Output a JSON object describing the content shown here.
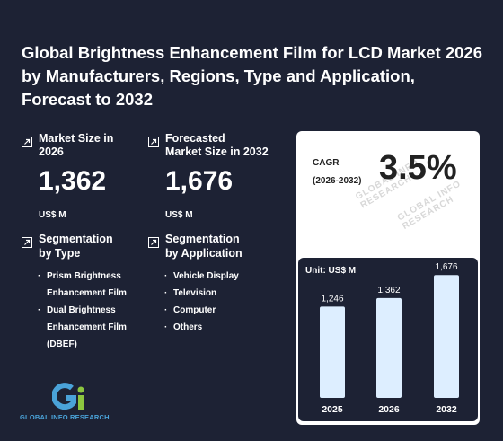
{
  "title": "Global Brightness Enhancement Film for LCD Market 2026 by Manufacturers, Regions, Type and Application, Forecast to 2032",
  "kpis": {
    "market_size": {
      "label": "Market Size in\n2026",
      "value": "1,362",
      "unit": "US$ M"
    },
    "forecast": {
      "label": "Forecasted\nMarket Size in 2032",
      "value": "1,676",
      "unit": "US$ M"
    }
  },
  "segmentation": {
    "type": {
      "heading": "Segmentation\nby Type",
      "items": [
        "Prism Brightness Enhancement Film",
        "Dual Brightness Enhancement Film (DBEF)"
      ]
    },
    "application": {
      "heading": "Segmentation\nby Application",
      "items": [
        "Vehicle Display",
        "Television",
        "Computer",
        "Others"
      ]
    }
  },
  "cagr": {
    "label": "CAGR\n(2026-2032)",
    "value": "3.5%"
  },
  "watermark": "GLOBAL INFO RESEARCH",
  "logo": {
    "text": "GLOBAL INFO RESEARCH"
  },
  "colors": {
    "background": "#1d2234",
    "bar": "#ddeeff",
    "card": "#ffffff",
    "logo_blue": "#4aa3d9",
    "logo_green": "#8cc63f"
  },
  "chart_data": {
    "type": "bar",
    "unit_label": "Unit: US$ M",
    "categories": [
      "2025",
      "2026",
      "2032"
    ],
    "values": [
      1246,
      1362,
      1676
    ],
    "value_labels": [
      "1,246",
      "1,362",
      "1,676"
    ],
    "ylim": [
      0,
      2000
    ],
    "grid": false
  }
}
